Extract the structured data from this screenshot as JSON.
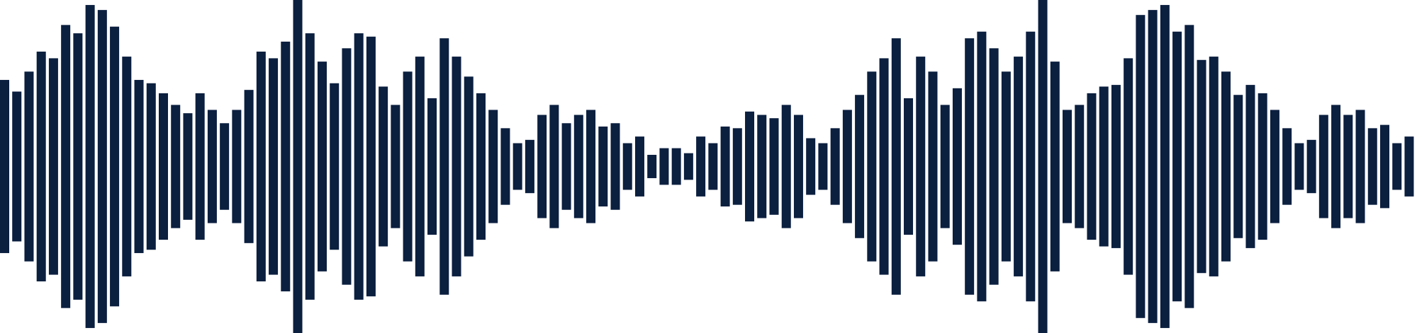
{
  "waveform": {
    "bar_color": "#0b1f3f",
    "background": "#ffffff",
    "bar_count": 116,
    "amplitudes": [
      0.52,
      0.45,
      0.57,
      0.69,
      0.65,
      0.85,
      0.8,
      0.97,
      0.94,
      0.84,
      0.66,
      0.52,
      0.5,
      0.44,
      0.37,
      0.32,
      0.44,
      0.34,
      0.26,
      0.34,
      0.46,
      0.69,
      0.65,
      0.75,
      1.0,
      0.8,
      0.63,
      0.5,
      0.71,
      0.8,
      0.78,
      0.48,
      0.37,
      0.57,
      0.66,
      0.41,
      0.77,
      0.66,
      0.54,
      0.44,
      0.34,
      0.23,
      0.14,
      0.16,
      0.31,
      0.37,
      0.26,
      0.31,
      0.34,
      0.24,
      0.26,
      0.14,
      0.18,
      0.07,
      0.11,
      0.11,
      0.08,
      0.18,
      0.14,
      0.24,
      0.23,
      0.33,
      0.31,
      0.29,
      0.37,
      0.31,
      0.17,
      0.14,
      0.23,
      0.34,
      0.43,
      0.57,
      0.65,
      0.77,
      0.41,
      0.66,
      0.57,
      0.37,
      0.47,
      0.77,
      0.81,
      0.71,
      0.57,
      0.66,
      0.81,
      1.0,
      0.63,
      0.34,
      0.37,
      0.44,
      0.48,
      0.49,
      0.65,
      0.91,
      0.94,
      0.97,
      0.81,
      0.85,
      0.64,
      0.66,
      0.57,
      0.43,
      0.49,
      0.44,
      0.34,
      0.23,
      0.14,
      0.16,
      0.31,
      0.37,
      0.31,
      0.34,
      0.23,
      0.25,
      0.14,
      0.18
    ]
  }
}
